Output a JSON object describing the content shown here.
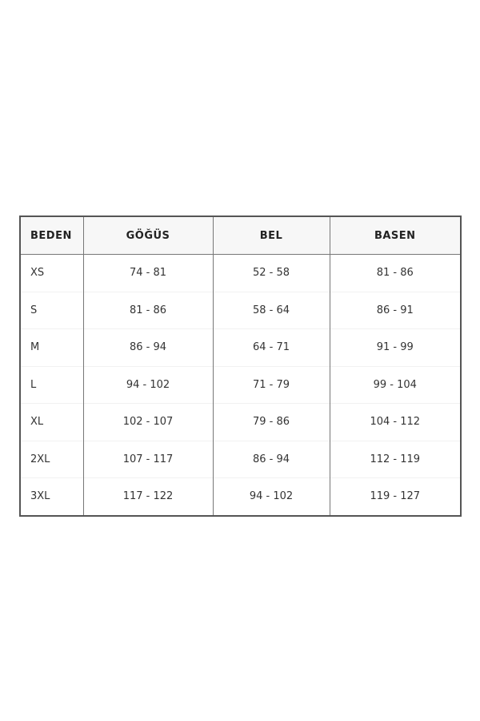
{
  "size_table": {
    "headers": [
      "BEDEN",
      "GÖĞÜS",
      "BEL",
      "BASEN"
    ],
    "rows": [
      [
        "XS",
        "74 - 81",
        "52 - 58",
        "81 - 86"
      ],
      [
        "S",
        "81 - 86",
        "58 - 64",
        "86 - 91"
      ],
      [
        "M",
        "86 - 94",
        "64 - 71",
        "91 - 99"
      ],
      [
        "L",
        "94 - 102",
        "71 - 79",
        "99 - 104"
      ],
      [
        "XL",
        "102 - 107",
        "79 - 86",
        "104 - 112"
      ],
      [
        "2XL",
        "107 - 117",
        "86 - 94",
        "112 - 119"
      ],
      [
        "3XL",
        "117 - 122",
        "94 - 102",
        "119 - 127"
      ]
    ]
  }
}
